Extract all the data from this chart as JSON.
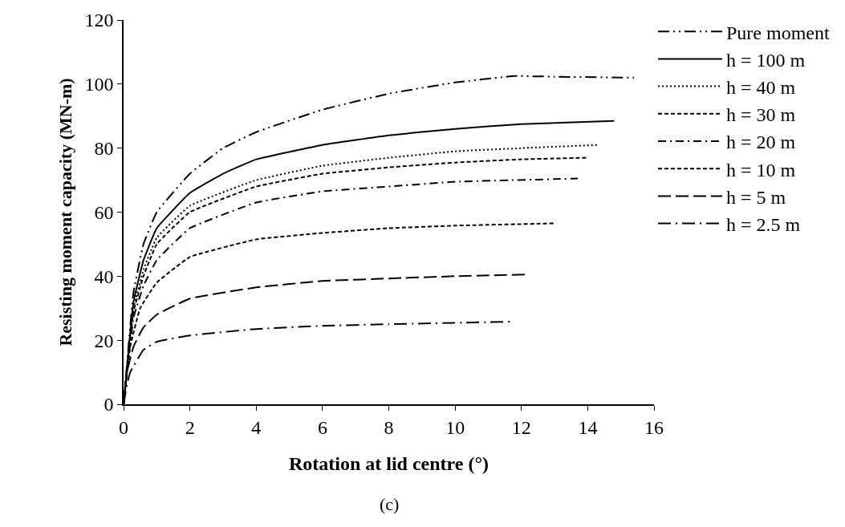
{
  "chart_data": {
    "type": "line",
    "xlabel": "Rotation at lid centre (°)",
    "ylabel": "Resisting moment capacity (MN-m)",
    "annotations": [
      "(c)"
    ],
    "xlim": [
      0,
      16
    ],
    "xticks": [
      0,
      2,
      4,
      6,
      8,
      10,
      12,
      14,
      16
    ],
    "ylim": [
      0,
      120
    ],
    "yticks": [
      0,
      20,
      40,
      60,
      80,
      100,
      120
    ],
    "legend": "right",
    "marker": "none",
    "series": [
      {
        "name": "Pure moment",
        "color": "#000000",
        "line_style": "dashdotdot",
        "x": [
          0,
          0.3,
          0.6,
          1,
          2,
          3,
          4,
          6,
          8,
          10,
          11.8,
          13,
          15.4
        ],
        "values": [
          0,
          35,
          50,
          60,
          72,
          80,
          85,
          92,
          97,
          100.5,
          102.5,
          102.3,
          102
        ]
      },
      {
        "name": "h = 100 m",
        "color": "#000000",
        "line_style": "solid",
        "x": [
          0,
          0.3,
          0.6,
          1,
          2,
          3,
          4,
          6,
          8,
          10,
          12,
          14.8
        ],
        "values": [
          0,
          32,
          45,
          55,
          66,
          72,
          76.5,
          81,
          84,
          86,
          87.5,
          88.5
        ]
      },
      {
        "name": "h = 40 m",
        "color": "#000000",
        "line_style": "dotted",
        "x": [
          0,
          0.3,
          0.6,
          1,
          2,
          4,
          6,
          8,
          10,
          12,
          14.3
        ],
        "values": [
          0,
          30,
          42,
          52,
          62,
          70,
          74.5,
          77,
          79,
          80,
          81
        ]
      },
      {
        "name": "h = 30 m",
        "color": "#000000",
        "line_style": "dashed",
        "x": [
          0,
          0.3,
          0.6,
          1,
          2,
          4,
          6,
          8,
          10,
          12,
          14
        ],
        "values": [
          0,
          29,
          40,
          50,
          60,
          68,
          72,
          74,
          75.5,
          76.5,
          77
        ]
      },
      {
        "name": "h = 20 m",
        "color": "#000000",
        "line_style": "dashdot",
        "x": [
          0,
          0.3,
          0.6,
          1,
          2,
          4,
          6,
          8,
          10,
          13.7
        ],
        "values": [
          0,
          27,
          37,
          45,
          55,
          63,
          66.5,
          68,
          69.5,
          70.5
        ]
      },
      {
        "name": "h = 10 m",
        "color": "#000000",
        "line_style": "dashed",
        "x": [
          0,
          0.2,
          0.5,
          1,
          2,
          4,
          6,
          8,
          10,
          13
        ],
        "values": [
          0,
          18,
          30,
          38,
          46,
          51.5,
          53.5,
          55,
          55.8,
          56.5
        ]
      },
      {
        "name": "h = 5 m",
        "color": "#000000",
        "line_style": "longdash",
        "x": [
          0,
          0.1,
          0.3,
          0.6,
          1,
          2,
          4,
          6,
          8,
          10,
          12.1
        ],
        "values": [
          0,
          10,
          18,
          24,
          28,
          33,
          36.5,
          38.5,
          39.3,
          40,
          40.5
        ]
      },
      {
        "name": "h = 2.5 m",
        "color": "#000000",
        "line_style": "longdashdot",
        "x": [
          0,
          0.1,
          0.2,
          0.6,
          1,
          2,
          4,
          6,
          8,
          11.7
        ],
        "values": [
          0,
          6,
          10,
          17,
          19.5,
          21.5,
          23.5,
          24.5,
          25,
          25.8
        ]
      }
    ]
  }
}
